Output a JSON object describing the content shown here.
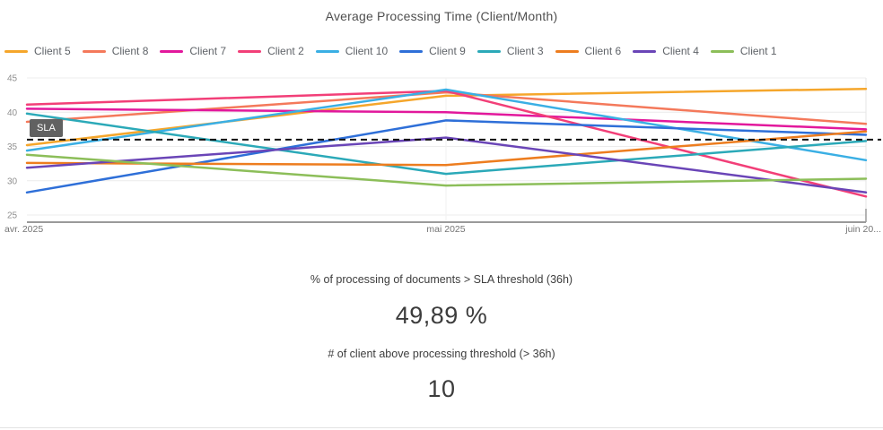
{
  "title": "Average Processing Time (Client/Month)",
  "chart_data": {
    "type": "line",
    "title": "Average Processing Time (Client/Month)",
    "x": [
      "avr. 2025",
      "mai 2025",
      "juin 20..."
    ],
    "ylim": [
      25,
      45
    ],
    "yticks": [
      45,
      40,
      35,
      30,
      25
    ],
    "grid": true,
    "legend_position": "top",
    "sla": {
      "label": "SLA",
      "value": 36
    },
    "series": [
      {
        "name": "Client 5",
        "color": "#F5A62B",
        "values": [
          35.2,
          42.4,
          43.4
        ]
      },
      {
        "name": "Client 8",
        "color": "#F4795B",
        "values": [
          38.6,
          42.9,
          38.3
        ]
      },
      {
        "name": "Client 7",
        "color": "#E2189C",
        "values": [
          40.5,
          40.0,
          37.5
        ]
      },
      {
        "name": "Client 2",
        "color": "#F23F78",
        "values": [
          41.1,
          43.1,
          27.7
        ]
      },
      {
        "name": "Client 10",
        "color": "#3AAFE4",
        "values": [
          34.4,
          43.3,
          33.0
        ]
      },
      {
        "name": "Client 9",
        "color": "#2E6FD8",
        "values": [
          28.3,
          38.8,
          36.7
        ]
      },
      {
        "name": "Client 3",
        "color": "#2BA9B8",
        "values": [
          39.8,
          31.0,
          35.8
        ]
      },
      {
        "name": "Client 6",
        "color": "#ED7D1F",
        "values": [
          32.6,
          32.3,
          37.2
        ]
      },
      {
        "name": "Client 4",
        "color": "#6A45B7",
        "values": [
          31.9,
          36.3,
          28.3
        ]
      },
      {
        "name": "Client 1",
        "color": "#8CBE59",
        "values": [
          33.8,
          29.3,
          30.3
        ]
      }
    ]
  },
  "kpis": [
    {
      "label": "% of processing of documents > SLA threshold (36h)",
      "value": "49,89 %"
    },
    {
      "label": "# of client above processing threshold (> 36h)",
      "value": "10"
    }
  ]
}
